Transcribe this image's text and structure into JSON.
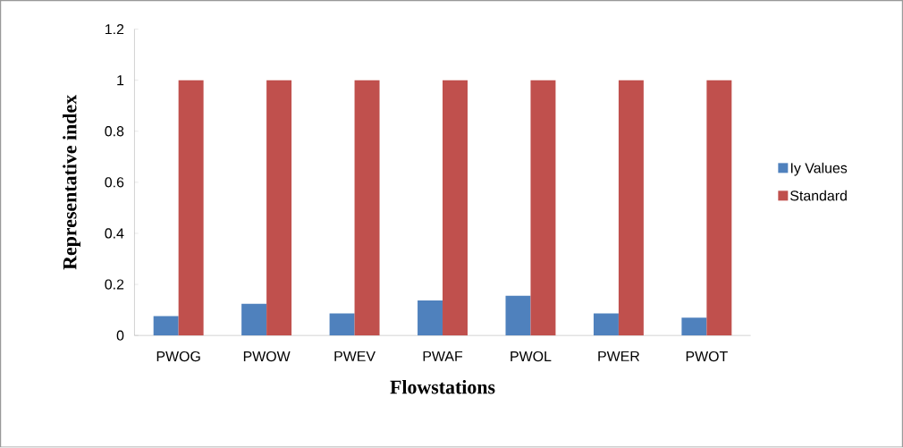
{
  "chart_data": {
    "type": "bar",
    "xlabel": "Flowstations",
    "ylabel": "Representative index",
    "categories": [
      "PWOG",
      "PWOW",
      "PWEV",
      "PWAF",
      "PWOL",
      "PWER",
      "PWOT"
    ],
    "series": [
      {
        "name": "Iy Values",
        "color": "#4f81bd",
        "values": [
          0.076,
          0.124,
          0.086,
          0.137,
          0.156,
          0.086,
          0.07
        ]
      },
      {
        "name": "Standard",
        "color": "#c0504d",
        "values": [
          1,
          1,
          1,
          1,
          1,
          1,
          1
        ]
      }
    ],
    "ylim": [
      0,
      1.2
    ],
    "yticks": [
      0,
      0.2,
      0.4,
      0.6,
      0.8,
      1,
      1.2
    ],
    "legend": "right",
    "grid": false
  }
}
